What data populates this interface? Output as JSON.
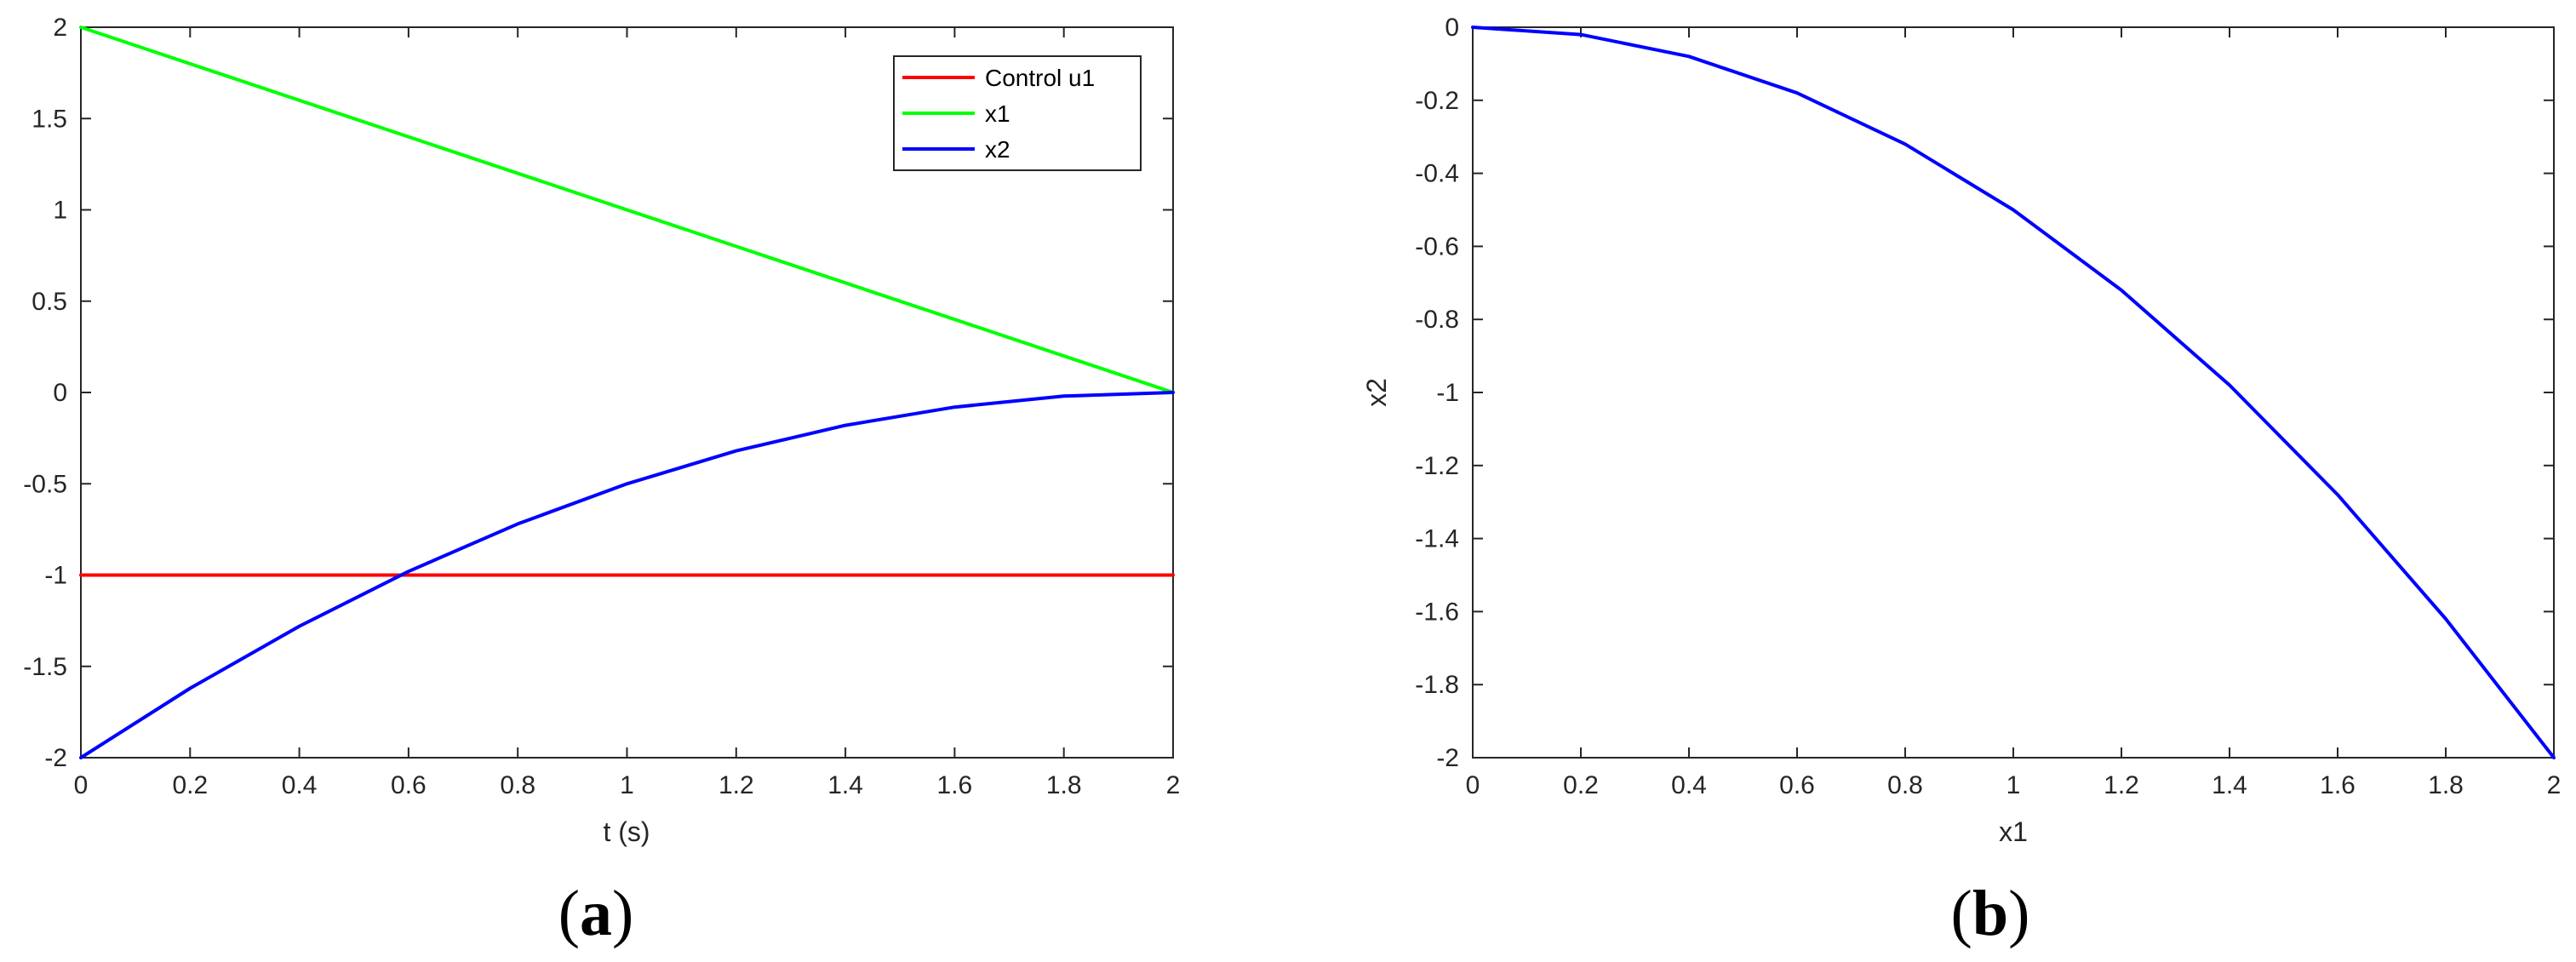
{
  "chart_data": [
    {
      "type": "line",
      "panel_label_letter": "a",
      "xlabel": "t (s)",
      "ylabel": "",
      "xlim": [
        0,
        2
      ],
      "ylim": [
        -2,
        2
      ],
      "xticks": [
        "0",
        "0.2",
        "0.4",
        "0.6",
        "0.8",
        "1",
        "1.2",
        "1.4",
        "1.6",
        "1.8",
        "2"
      ],
      "yticks": [
        "2",
        "1.5",
        "1",
        "0.5",
        "0",
        "-0.5",
        "-1",
        "-1.5",
        "-2"
      ],
      "grid": false,
      "legend_position": "top-right",
      "series": [
        {
          "name": "Control u1",
          "color": "#ff0000",
          "x": [
            0,
            2
          ],
          "y": [
            -1,
            -1
          ]
        },
        {
          "name": "x1",
          "color": "#00ff00",
          "x": [
            0,
            2
          ],
          "y": [
            2,
            0
          ]
        },
        {
          "name": "x2",
          "color": "#0000ff",
          "x": [
            0,
            0.2,
            0.4,
            0.6,
            0.8,
            1.0,
            1.2,
            1.4,
            1.6,
            1.8,
            2.0
          ],
          "y": [
            -2,
            -1.62,
            -1.28,
            -0.98,
            -0.72,
            -0.5,
            -0.32,
            -0.18,
            -0.08,
            -0.02,
            0
          ]
        }
      ]
    },
    {
      "type": "line",
      "panel_label_letter": "b",
      "xlabel": "x1",
      "ylabel": "x2",
      "xlim": [
        0,
        2
      ],
      "ylim": [
        -2,
        0
      ],
      "xticks": [
        "0",
        "0.2",
        "0.4",
        "0.6",
        "0.8",
        "1",
        "1.2",
        "1.4",
        "1.6",
        "1.8",
        "2"
      ],
      "yticks": [
        "0",
        "-0.2",
        "-0.4",
        "-0.6",
        "-0.8",
        "-1",
        "-1.2",
        "-1.4",
        "-1.6",
        "-1.8",
        "-2"
      ],
      "grid": false,
      "series": [
        {
          "color": "#0000ff",
          "x": [
            0,
            0.2,
            0.4,
            0.6,
            0.8,
            1.0,
            1.2,
            1.4,
            1.6,
            1.8,
            2.0
          ],
          "y": [
            0,
            -0.02,
            -0.08,
            -0.18,
            -0.32,
            -0.5,
            -0.72,
            -0.98,
            -1.28,
            -1.62,
            -2
          ]
        }
      ]
    }
  ]
}
